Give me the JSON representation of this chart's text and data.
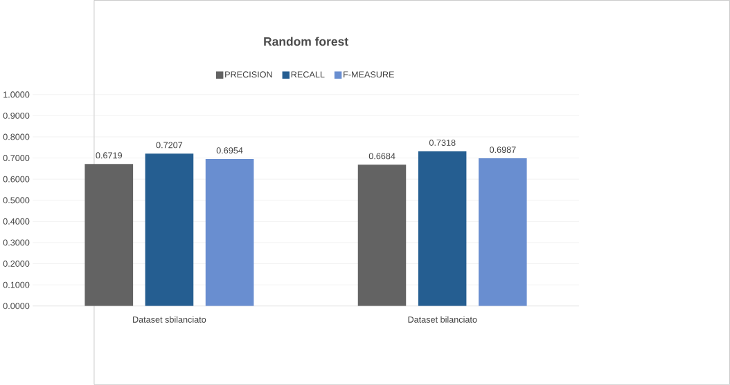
{
  "chart_data": {
    "type": "bar",
    "title": "Random forest",
    "categories": [
      "Dataset sbilanciato",
      "Dataset bilanciato"
    ],
    "series": [
      {
        "name": "PRECISION",
        "color": "#636363",
        "values": [
          0.6719,
          0.6684
        ]
      },
      {
        "name": "RECALL",
        "color": "#255e91",
        "values": [
          0.7207,
          0.7318
        ]
      },
      {
        "name": "F-MEASURE",
        "color": "#698ed0",
        "values": [
          0.6954,
          0.6987
        ]
      }
    ],
    "ylim": [
      0,
      1
    ],
    "yticks": [
      {
        "value": 0,
        "label": "0.0000"
      },
      {
        "value": 0.1,
        "label": "0.1000"
      },
      {
        "value": 0.2,
        "label": "0.2000"
      },
      {
        "value": 0.3,
        "label": "0.3000"
      },
      {
        "value": 0.4,
        "label": "0.4000"
      },
      {
        "value": 0.5,
        "label": "0.5000"
      },
      {
        "value": 0.6,
        "label": "0.6000"
      },
      {
        "value": 0.7,
        "label": "0.7000"
      },
      {
        "value": 0.8,
        "label": "0.8000"
      },
      {
        "value": 0.9,
        "label": "0.9000"
      },
      {
        "value": 1,
        "label": "1.0000"
      }
    ],
    "grid": "y",
    "legend": "top",
    "data_labels": true
  }
}
